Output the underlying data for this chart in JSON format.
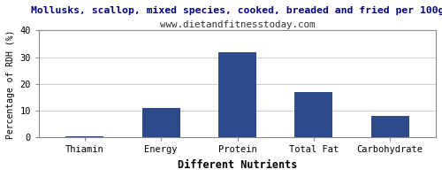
{
  "title": "Mollusks, scallop, mixed species, cooked, breaded and fried per 100g",
  "subtitle": "www.dietandfitnesstoday.com",
  "xlabel": "Different Nutrients",
  "ylabel": "Percentage of RDH (%)",
  "categories": [
    "Thiamin",
    "Energy",
    "Protein",
    "Total Fat",
    "Carbohydrate"
  ],
  "values": [
    0.4,
    11,
    32,
    17,
    8
  ],
  "bar_color": "#2e4a8a",
  "ylim": [
    0,
    40
  ],
  "yticks": [
    0,
    10,
    20,
    30,
    40
  ],
  "title_fontsize": 8.2,
  "subtitle_fontsize": 7.8,
  "xlabel_fontsize": 8.5,
  "ylabel_fontsize": 7.0,
  "tick_fontsize": 7.5,
  "background_color": "#ffffff",
  "grid_color": "#cccccc",
  "border_color": "#888888"
}
